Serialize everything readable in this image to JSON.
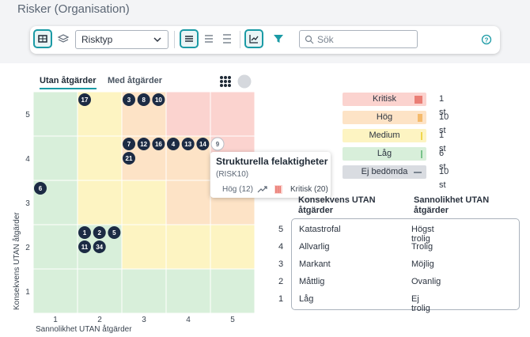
{
  "header": {
    "title": "Risker (Organisation)"
  },
  "toolbar": {
    "select": "Risktyp",
    "search_placeholder": "Sök"
  },
  "tabs": [
    "Utan åtgärder",
    "Med åtgärder"
  ],
  "matrix": {
    "x_label": "Sannolikhet UTAN åtgärder",
    "y_label": "Konsekvens UTAN åtgärder",
    "x_ticks": [
      1,
      2,
      3,
      4,
      5
    ],
    "y_ticks": [
      1,
      2,
      3,
      4,
      5
    ],
    "markers": [
      {
        "label": "17",
        "likelihood": 2,
        "consequence": 5
      },
      {
        "label": "3",
        "likelihood": 3,
        "consequence": 5
      },
      {
        "label": "8",
        "likelihood": 3,
        "consequence": 5
      },
      {
        "label": "10",
        "likelihood": 3,
        "consequence": 5
      },
      {
        "label": "7",
        "likelihood": 3,
        "consequence": 4
      },
      {
        "label": "12",
        "likelihood": 3,
        "consequence": 4
      },
      {
        "label": "16",
        "likelihood": 3,
        "consequence": 4
      },
      {
        "label": "21",
        "likelihood": 3,
        "consequence": 4
      },
      {
        "label": "4",
        "likelihood": 4,
        "consequence": 4
      },
      {
        "label": "13",
        "likelihood": 4,
        "consequence": 4
      },
      {
        "label": "14",
        "likelihood": 4,
        "consequence": 4
      },
      {
        "label": "9",
        "likelihood": 5,
        "consequence": 4,
        "highlighted": true
      },
      {
        "label": "6",
        "likelihood": 1,
        "consequence": 3
      },
      {
        "label": "1",
        "likelihood": 2,
        "consequence": 2
      },
      {
        "label": "2",
        "likelihood": 2,
        "consequence": 2
      },
      {
        "label": "5",
        "likelihood": 2,
        "consequence": 2
      },
      {
        "label": "11",
        "likelihood": 2,
        "consequence": 2
      },
      {
        "label": "34",
        "likelihood": 2,
        "consequence": 2
      }
    ]
  },
  "tooltip": {
    "title": "Strukturella felaktigheter",
    "id": "(RISK10)",
    "from": "Hög (12)",
    "to": "Kritisk (20)"
  },
  "legend": [
    {
      "label": "Kritisk",
      "count": "1 st",
      "color": "#fbd3cf"
    },
    {
      "label": "Hög",
      "count": "10 st",
      "color": "#fde3c6"
    },
    {
      "label": "Medium",
      "count": "1 st",
      "color": "#fdf4c2"
    },
    {
      "label": "Låg",
      "count": "6 st",
      "color": "#d8efda"
    },
    {
      "label": "Ej bedömda",
      "count": "10 st",
      "color": "#d9dce1"
    }
  ],
  "table": {
    "headers": [
      "Konsekvens UTAN åtgärder",
      "Sannolikhet UTAN åtgärder"
    ],
    "rows": [
      {
        "level": 5,
        "consequence": "Katastrofal",
        "likelihood": "Högst trolig"
      },
      {
        "level": 4,
        "consequence": "Allvarlig",
        "likelihood": "Trolig"
      },
      {
        "level": 3,
        "consequence": "Markant",
        "likelihood": "Möjlig"
      },
      {
        "level": 2,
        "consequence": "Måttlig",
        "likelihood": "Ovanlig"
      },
      {
        "level": 1,
        "consequence": "Låg",
        "likelihood": "Ej trolig"
      }
    ]
  }
}
